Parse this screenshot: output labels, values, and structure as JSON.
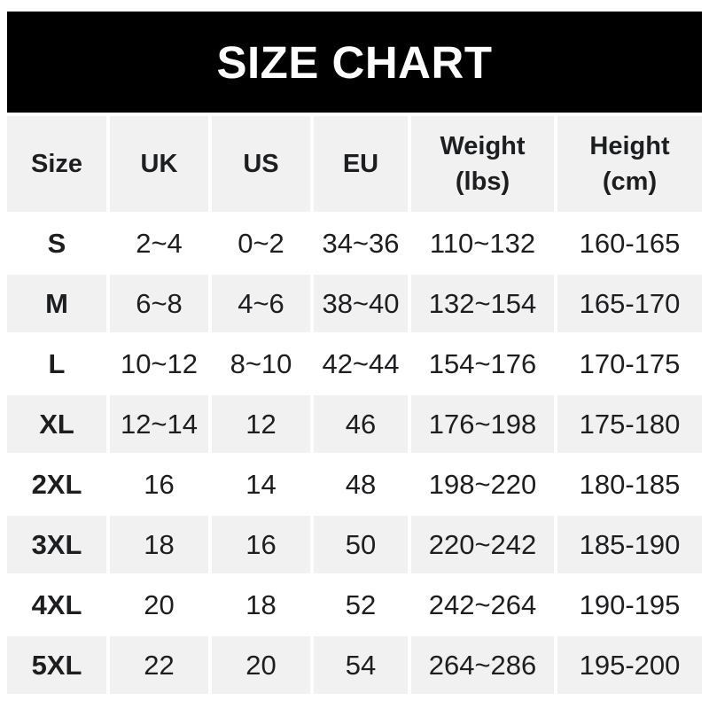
{
  "chart_data": {
    "type": "table",
    "title": "SIZE CHART",
    "columns": [
      "Size",
      "UK",
      "US",
      "EU",
      "Weight (lbs)",
      "Height (cm)"
    ],
    "rows": [
      [
        "S",
        "2~4",
        "0~2",
        "34~36",
        "110~132",
        "160-165"
      ],
      [
        "M",
        "6~8",
        "4~6",
        "38~40",
        "132~154",
        "165-170"
      ],
      [
        "L",
        "10~12",
        "8~10",
        "42~44",
        "154~176",
        "170-175"
      ],
      [
        "XL",
        "12~14",
        "12",
        "46",
        "176~198",
        "175-180"
      ],
      [
        "2XL",
        "16",
        "14",
        "48",
        "198~220",
        "180-185"
      ],
      [
        "3XL",
        "18",
        "16",
        "50",
        "220~242",
        "185-190"
      ],
      [
        "4XL",
        "20",
        "18",
        "52",
        "242~264",
        "190-195"
      ],
      [
        "5XL",
        "22",
        "20",
        "54",
        "264~286",
        "195-200"
      ]
    ]
  },
  "display": {
    "column_headers": [
      {
        "label": "Size",
        "sub": ""
      },
      {
        "label": "UK",
        "sub": ""
      },
      {
        "label": "US",
        "sub": ""
      },
      {
        "label": "EU",
        "sub": ""
      },
      {
        "label": "Weight",
        "sub": "(lbs)"
      },
      {
        "label": "Height",
        "sub": "(cm)"
      }
    ]
  },
  "colors": {
    "page_bg": "#ffffff",
    "banner_bg": "#000000",
    "banner_text": "#ffffff",
    "stripe": "#f1f1f2",
    "text": "#1d1e20"
  }
}
